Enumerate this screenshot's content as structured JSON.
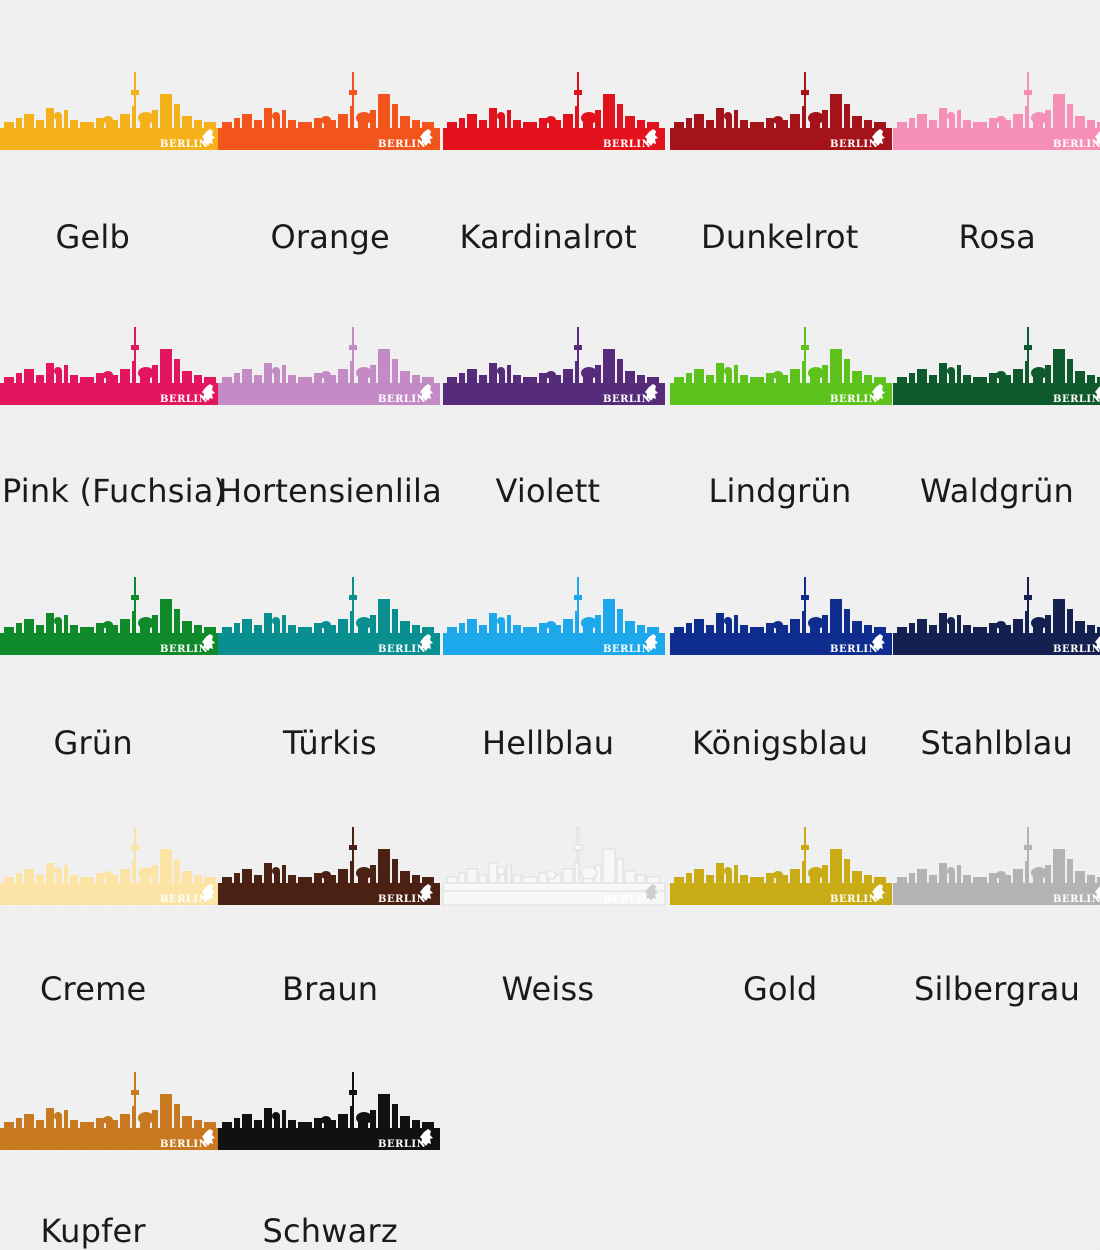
{
  "brand_text": "BERLIN",
  "colors": [
    {
      "name": "Gelb",
      "hex": "#f5b11a"
    },
    {
      "name": "Orange",
      "hex": "#f2551c"
    },
    {
      "name": "Kardinalrot",
      "hex": "#e3111c"
    },
    {
      "name": "Dunkelrot",
      "hex": "#a4121a"
    },
    {
      "name": "Rosa",
      "hex": "#f58fb5"
    },
    {
      "name": "Pink (Fuchsia)",
      "hex": "#e3155f"
    },
    {
      "name": "Hortensienlila",
      "hex": "#c48ac6"
    },
    {
      "name": "Violett",
      "hex": "#562c7a"
    },
    {
      "name": "Lindgrün",
      "hex": "#5ec21c"
    },
    {
      "name": "Waldgrün",
      "hex": "#0f5a2c"
    },
    {
      "name": "Grün",
      "hex": "#0f8a2a"
    },
    {
      "name": "Türkis",
      "hex": "#0a8f91"
    },
    {
      "name": "Hellblau",
      "hex": "#1ea8ec"
    },
    {
      "name": "Königsblau",
      "hex": "#0f2d8f"
    },
    {
      "name": "Stahlblau",
      "hex": "#14204f"
    },
    {
      "name": "Creme",
      "hex": "#fbe4a6"
    },
    {
      "name": "Braun",
      "hex": "#4a2112"
    },
    {
      "name": "Weiss",
      "hex": "#f7f7f7"
    },
    {
      "name": "Gold",
      "hex": "#c9ac15"
    },
    {
      "name": "Silbergrau",
      "hex": "#b3b3b3"
    },
    {
      "name": "Kupfer",
      "hex": "#c87920"
    },
    {
      "name": "Schwarz",
      "hex": "#111111"
    }
  ]
}
